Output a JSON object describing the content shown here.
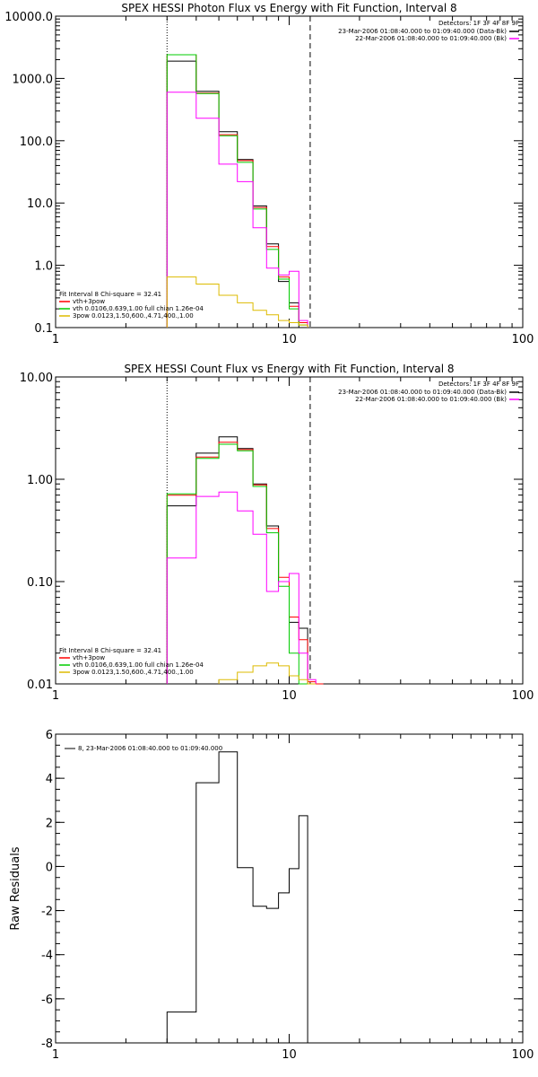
{
  "chart_data": [
    {
      "type": "line",
      "title": "SPEX HESSI Photon Flux vs Energy with Fit Function, Interval 8",
      "xlabel": "",
      "ylabel": "",
      "xscale": "log",
      "yscale": "log",
      "xlim": [
        1,
        100
      ],
      "ylim": [
        0.1,
        10000
      ],
      "x_tick_labels": [
        "1",
        "10",
        "100"
      ],
      "y_tick_labels": [
        "0.1",
        "1.0",
        "10.0",
        "100.0",
        "1000.0",
        "10000.0"
      ],
      "x_tick_values": [
        1,
        10,
        100
      ],
      "y_tick_values": [
        0.1,
        1,
        10,
        100,
        1000,
        10000
      ],
      "vlines": [
        {
          "x": 3,
          "style": "dotted"
        },
        {
          "x": 12.3,
          "style": "dashed"
        }
      ],
      "legend_right": {
        "detectors": "Detectors: 1F 3F 4F 8F 9F",
        "entries": [
          {
            "label": "23-Mar-2006 01:08:40.000 to 01:09:40.000 (Data-Bk)",
            "color": "#000000"
          },
          {
            "label": "22-Mar-2006 01:08:40.000 to 01:09:40.000 (Bk)",
            "color": "#ff00ff"
          }
        ]
      },
      "legend_left": {
        "header": "Fit Interval 8   Chi-square = 32.41",
        "entries": [
          {
            "label": "vth+3pow",
            "color": "#ff0000"
          },
          {
            "label": "vth 0.0106,0.639,1.00  full chian 1.26e-04",
            "color": "#00cc00"
          },
          {
            "label": "3pow 0.0123,1.50,600.,4.71,400.,1.00",
            "color": "#ddbb00"
          }
        ]
      },
      "bin_edges": [
        3,
        4,
        5,
        6,
        7,
        8,
        9,
        10,
        11,
        12,
        13
      ],
      "series": [
        {
          "name": "Data-Bk",
          "color": "#000000",
          "values": [
            1900,
            620,
            140,
            50,
            9,
            2.2,
            0.55,
            0.25,
            null,
            null
          ]
        },
        {
          "name": "vth+3pow",
          "color": "#ff0000",
          "values": [
            2400,
            580,
            125,
            48,
            8.5,
            2.0,
            0.65,
            0.22,
            0.12,
            null
          ]
        },
        {
          "name": "vth",
          "color": "#00cc00",
          "values": [
            2400,
            570,
            120,
            45,
            8,
            1.8,
            0.6,
            0.2,
            0.11,
            null
          ]
        },
        {
          "name": "Bk",
          "color": "#ff00ff",
          "values": [
            600,
            230,
            42,
            22,
            4,
            0.9,
            0.7,
            0.8,
            0.13,
            null
          ]
        },
        {
          "name": "3pow",
          "color": "#ddbb00",
          "values": [
            0.65,
            0.5,
            0.33,
            0.25,
            0.19,
            0.16,
            0.13,
            0.12,
            0.11,
            null
          ]
        }
      ]
    },
    {
      "type": "line",
      "title": "SPEX HESSI Count Flux vs Energy with Fit Function, Interval 8",
      "xlabel": "",
      "ylabel": "",
      "xscale": "log",
      "yscale": "log",
      "xlim": [
        1,
        100
      ],
      "ylim": [
        0.01,
        10
      ],
      "x_tick_labels": [
        "1",
        "10",
        "100"
      ],
      "y_tick_labels": [
        "0.01",
        "0.10",
        "1.00",
        "10.00"
      ],
      "x_tick_values": [
        1,
        10,
        100
      ],
      "y_tick_values": [
        0.01,
        0.1,
        1,
        10
      ],
      "vlines": [
        {
          "x": 3,
          "style": "dotted"
        },
        {
          "x": 12.3,
          "style": "dashed"
        }
      ],
      "legend_right": {
        "detectors": "Detectors: 1F 3F 4F 8F 9F",
        "entries": [
          {
            "label": "23-Mar-2006 01:08:40.000 to 01:09:40.000 (Data-Bk)",
            "color": "#000000"
          },
          {
            "label": "22-Mar-2006 01:08:40.000 to 01:09:40.000 (Bk)",
            "color": "#ff00ff"
          }
        ]
      },
      "legend_left": {
        "header": "Fit Interval 8   Chi-square = 32.41",
        "entries": [
          {
            "label": "vth+3pow",
            "color": "#ff0000"
          },
          {
            "label": "vth 0.0106,0.639,1.00  full chian 1.26e-04",
            "color": "#00cc00"
          },
          {
            "label": "3pow 0.0123,1.50,600.,4.71,400.,1.00",
            "color": "#ddbb00"
          }
        ]
      },
      "bin_edges": [
        3,
        4,
        5,
        6,
        7,
        8,
        9,
        10,
        11,
        12,
        13,
        14,
        15
      ],
      "series": [
        {
          "name": "Data-Bk",
          "color": "#000000",
          "values": [
            0.55,
            1.8,
            2.6,
            2.0,
            0.9,
            0.35,
            0.1,
            0.04,
            0.035,
            null,
            null,
            null
          ]
        },
        {
          "name": "vth+3pow",
          "color": "#ff0000",
          "values": [
            0.7,
            1.65,
            2.3,
            1.95,
            0.88,
            0.33,
            0.11,
            0.045,
            0.027,
            0.0105,
            0.0095,
            null
          ]
        },
        {
          "name": "vth",
          "color": "#00cc00",
          "values": [
            0.72,
            1.6,
            2.2,
            1.9,
            0.85,
            0.3,
            0.09,
            0.02,
            0.0085,
            null,
            null,
            null
          ]
        },
        {
          "name": "Bk",
          "color": "#ff00ff",
          "values": [
            0.17,
            0.68,
            0.75,
            0.49,
            0.29,
            0.08,
            0.1,
            0.12,
            0.02,
            0.011,
            null,
            null
          ]
        },
        {
          "name": "3pow",
          "color": "#ddbb00",
          "values": [
            null,
            null,
            0.011,
            0.013,
            0.015,
            0.016,
            0.015,
            0.012,
            0.011,
            0.01,
            null,
            null
          ]
        }
      ]
    },
    {
      "type": "line",
      "title": "",
      "xlabel": "",
      "ylabel": "Raw Residuals",
      "xscale": "log",
      "yscale": "linear",
      "xlim": [
        1,
        100
      ],
      "ylim": [
        -8,
        6
      ],
      "x_tick_labels": [
        "1",
        "10",
        "100"
      ],
      "y_tick_labels": [
        "-8",
        "-6",
        "-4",
        "-2",
        "0",
        "2",
        "4",
        "6"
      ],
      "x_tick_values": [
        1,
        10,
        100
      ],
      "y_tick_values": [
        -8,
        -6,
        -4,
        -2,
        0,
        2,
        4,
        6
      ],
      "legend": {
        "label": "8, 23-Mar-2006 01:08:40.000 to 01:09:40.000",
        "color": "#000000"
      },
      "bin_edges": [
        3,
        4,
        5,
        6,
        7,
        8,
        9,
        10,
        11,
        12
      ],
      "series": [
        {
          "name": "8",
          "color": "#000000",
          "values": [
            -6.6,
            3.8,
            5.2,
            -0.05,
            -1.8,
            -1.9,
            -1.2,
            -0.1,
            2.3
          ]
        }
      ]
    }
  ]
}
